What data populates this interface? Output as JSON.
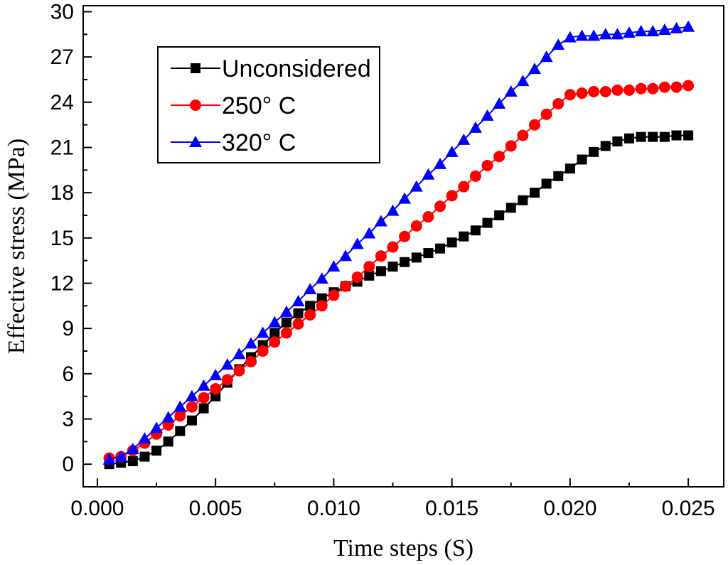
{
  "chart_data": {
    "type": "line",
    "title": "",
    "xlabel": "Time steps (S)",
    "ylabel": "Effective stress (MPa)",
    "xlim": [
      -0.0006,
      0.0265
    ],
    "ylim": [
      -1.5,
      30.4
    ],
    "xticks": [
      0.0,
      0.005,
      0.01,
      0.015,
      0.02,
      0.025
    ],
    "xtick_labels": [
      "0.000",
      "0.005",
      "0.010",
      "0.015",
      "0.020",
      "0.025"
    ],
    "yticks": [
      0,
      3,
      6,
      9,
      12,
      15,
      18,
      21,
      24,
      27,
      30
    ],
    "ytick_labels": [
      "0",
      "3",
      "6",
      "9",
      "12",
      "15",
      "18",
      "21",
      "24",
      "27",
      "30"
    ],
    "grid": false,
    "legend_position": "top-left",
    "x": [
      0.0005,
      0.001,
      0.0015,
      0.002,
      0.0025,
      0.003,
      0.0035,
      0.004,
      0.0045,
      0.005,
      0.0055,
      0.006,
      0.0065,
      0.007,
      0.0075,
      0.008,
      0.0085,
      0.009,
      0.0095,
      0.01,
      0.0105,
      0.011,
      0.0115,
      0.012,
      0.0125,
      0.013,
      0.0135,
      0.014,
      0.0145,
      0.015,
      0.0155,
      0.016,
      0.0165,
      0.017,
      0.0175,
      0.018,
      0.0185,
      0.019,
      0.0195,
      0.02,
      0.0205,
      0.021,
      0.0215,
      0.022,
      0.0225,
      0.023,
      0.0235,
      0.024,
      0.0245,
      0.025
    ],
    "series": [
      {
        "name": "Unconsidered",
        "color": "#000000",
        "marker": "square",
        "values": [
          0.0,
          0.1,
          0.2,
          0.5,
          0.9,
          1.5,
          2.2,
          2.9,
          3.7,
          4.5,
          5.4,
          6.3,
          7.1,
          7.9,
          8.7,
          9.4,
          10.0,
          10.5,
          11.0,
          11.4,
          11.8,
          12.1,
          12.5,
          12.8,
          13.1,
          13.4,
          13.7,
          14.0,
          14.3,
          14.7,
          15.1,
          15.5,
          16.0,
          16.5,
          17.0,
          17.5,
          18.0,
          18.6,
          19.1,
          19.6,
          20.2,
          20.7,
          21.1,
          21.4,
          21.6,
          21.7,
          21.7,
          21.7,
          21.8,
          21.8
        ]
      },
      {
        "name": "250° C",
        "color": "#ff0000",
        "marker": "circle",
        "values": [
          0.4,
          0.5,
          0.9,
          1.4,
          2.0,
          2.6,
          3.2,
          3.8,
          4.4,
          5.0,
          5.6,
          6.2,
          6.8,
          7.5,
          8.1,
          8.7,
          9.3,
          9.9,
          10.5,
          11.2,
          11.8,
          12.4,
          13.1,
          13.8,
          14.4,
          15.1,
          15.8,
          16.4,
          17.1,
          17.8,
          18.4,
          19.1,
          19.8,
          20.4,
          21.1,
          21.8,
          22.5,
          23.2,
          23.9,
          24.5,
          24.6,
          24.7,
          24.7,
          24.8,
          24.8,
          24.9,
          24.9,
          25.0,
          25.0,
          25.1
        ]
      },
      {
        "name": "320° C",
        "color": "#0000ff",
        "marker": "triangle",
        "values": [
          0.3,
          0.5,
          1.0,
          1.7,
          2.4,
          3.1,
          3.8,
          4.5,
          5.2,
          5.9,
          6.6,
          7.3,
          8.0,
          8.7,
          9.4,
          10.1,
          10.8,
          11.6,
          12.3,
          13.1,
          13.8,
          14.6,
          15.3,
          16.1,
          16.8,
          17.6,
          18.4,
          19.2,
          19.9,
          20.7,
          21.5,
          22.3,
          23.1,
          23.9,
          24.7,
          25.4,
          26.2,
          27.0,
          27.8,
          28.3,
          28.4,
          28.4,
          28.5,
          28.5,
          28.6,
          28.7,
          28.7,
          28.8,
          28.9,
          29.0
        ]
      }
    ]
  },
  "legend": {
    "items": [
      "Unconsidered",
      "250° C",
      "320° C"
    ]
  }
}
